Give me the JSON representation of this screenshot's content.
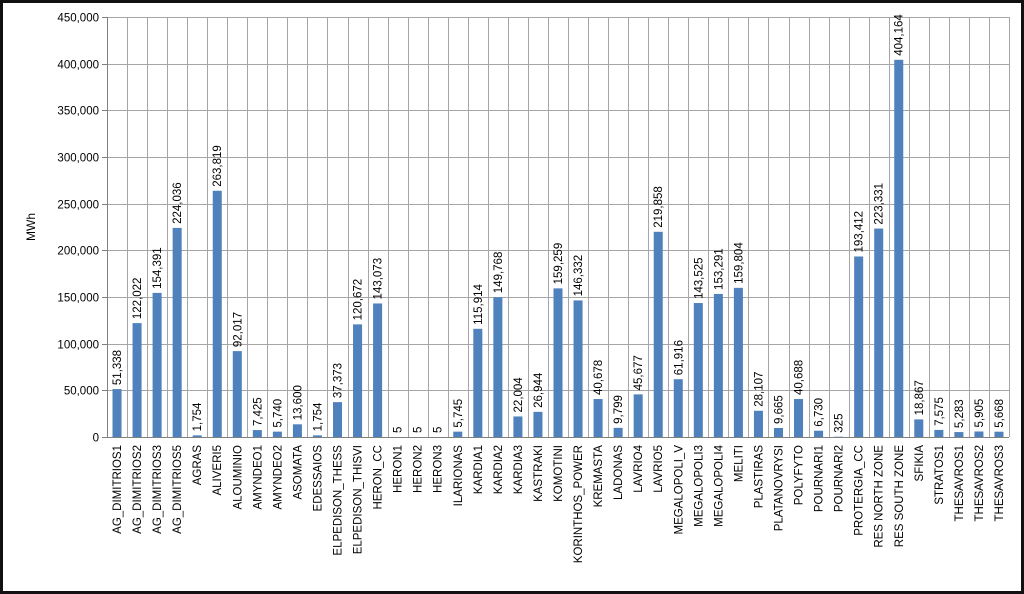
{
  "chart_data": {
    "type": "bar",
    "ylabel": "MWh",
    "ylim": [
      0,
      450000
    ],
    "ytick_step": 50000,
    "grid": true,
    "bar_color": "#4F81BD",
    "grid_color": "#A6A6A6",
    "categories": [
      "AG_DIMITRIOS1",
      "AG_DIMITRIOS2",
      "AG_DIMITRIOS3",
      "AG_DIMITRIOS5",
      "AGRAS",
      "ALIVERI5",
      "ALOUMINIO",
      "AMYNDEO1",
      "AMYNDEO2",
      "ASOMATA",
      "EDESSAIOS",
      "ELPEDISON_THESS",
      "ELPEDISON_THISVI",
      "HERON_CC",
      "HERON1",
      "HERON2",
      "HERON3",
      "ILARIONAS",
      "KARDIA1",
      "KARDIA2",
      "KARDIA3",
      "KASTRAKI",
      "KOMOTINI",
      "KORINTHOS_POWER",
      "KREMASTA",
      "LADONAS",
      "LAVRIO4",
      "LAVRIO5",
      "MEGALOPOLI_V",
      "MEGALOPOLI3",
      "MEGALOPOLI4",
      "MELITI",
      "PLASTIRAS",
      "PLATANOVRYSI",
      "POLYFYTO",
      "POURNARI1",
      "POURNARI2",
      "PROTERGIA_CC",
      "RES NORTH ZONE",
      "RES SOUTH ZONE",
      "SFIKIA",
      "STRATOS1",
      "THESAVROS1",
      "THESAVROS2",
      "THESAVROS3"
    ],
    "values": [
      51338,
      122022,
      154391,
      224036,
      1754,
      263819,
      92017,
      7425,
      5740,
      13600,
      1754,
      37373,
      120672,
      143073,
      5,
      5,
      5,
      5745,
      115914,
      149768,
      22004,
      26944,
      159259,
      146332,
      40678,
      9799,
      45677,
      219858,
      61916,
      143525,
      153291,
      159804,
      28107,
      9665,
      40688,
      6730,
      325,
      193412,
      223331,
      404164,
      18867,
      7575,
      5283,
      5905,
      5668
    ],
    "data_labels": [
      "51,338",
      "122,022",
      "154,391",
      "224,036",
      "1,754",
      "263,819",
      "92,017",
      "7,425",
      "5,740",
      "13,600",
      "1,754",
      "37,373",
      "120,672",
      "143,073",
      "5",
      "5",
      "5",
      "5,745",
      "115,914",
      "149,768",
      "22,004",
      "26,944",
      "159,259",
      "146,332",
      "40,678",
      "9,799",
      "45,677",
      "219,858",
      "61,916",
      "143,525",
      "153,291",
      "159,804",
      "28,107",
      "9,665",
      "40,688",
      "6,730",
      "325",
      "193,412",
      "223,331",
      "404,164",
      "18,867",
      "7,575",
      "5,283",
      "5,905",
      "5,668"
    ],
    "ytick_labels": [
      "0",
      "50,000",
      "100,000",
      "150,000",
      "200,000",
      "250,000",
      "300,000",
      "350,000",
      "400,000",
      "450,000"
    ]
  }
}
